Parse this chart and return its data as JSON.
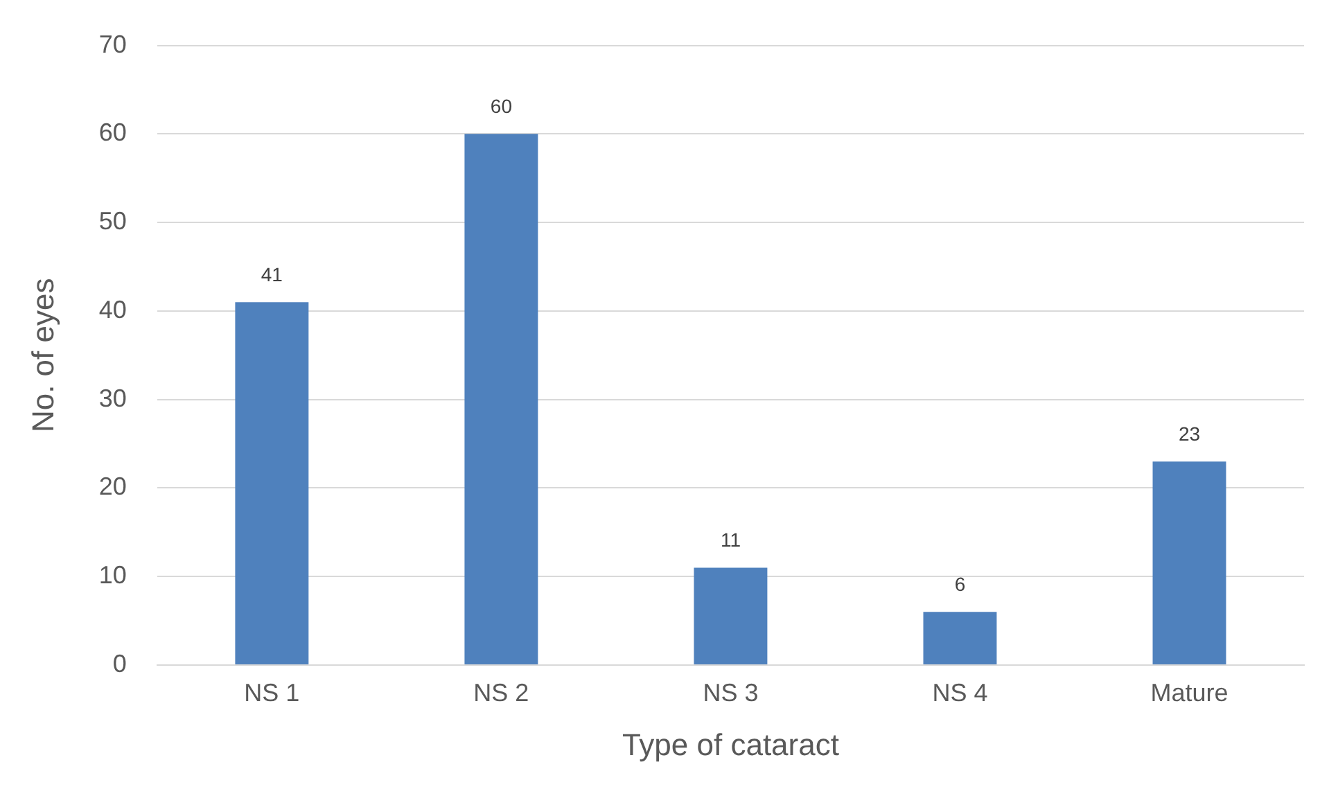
{
  "chart_data": {
    "type": "bar",
    "xlabel": "Type of cataract",
    "ylabel": "No. of eyes",
    "categories": [
      "NS 1",
      "NS 2",
      "NS 3",
      "NS 4",
      "Mature"
    ],
    "values": [
      41,
      60,
      11,
      6,
      23
    ],
    "color": "#4f81bd",
    "ylim": [
      0,
      70
    ],
    "yticks": [
      0,
      10,
      20,
      30,
      40,
      50,
      60,
      70
    ],
    "grid": "y",
    "data_labels": true
  }
}
